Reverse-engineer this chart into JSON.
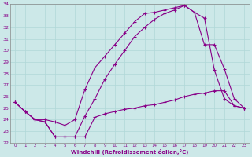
{
  "xlabel": "Windchill (Refroidissement éolien,°C)",
  "bg_color": "#cce8e8",
  "line_color": "#880088",
  "xlim": [
    -0.5,
    23.5
  ],
  "ylim": [
    22,
    34
  ],
  "xticks": [
    0,
    1,
    2,
    3,
    4,
    5,
    6,
    7,
    8,
    9,
    10,
    11,
    12,
    13,
    14,
    15,
    16,
    17,
    18,
    19,
    20,
    21,
    22,
    23
  ],
  "yticks": [
    22,
    23,
    24,
    25,
    26,
    27,
    28,
    29,
    30,
    31,
    32,
    33,
    34
  ],
  "series1_x": [
    0,
    1,
    2,
    3,
    4,
    5,
    6,
    7,
    8,
    9,
    10,
    11,
    12,
    13,
    14,
    15,
    16,
    17,
    18,
    19,
    20,
    21,
    22,
    23
  ],
  "series1_y": [
    25.5,
    24.7,
    24.0,
    24.0,
    23.8,
    23.5,
    24.0,
    26.6,
    28.5,
    29.5,
    30.5,
    31.5,
    32.5,
    33.2,
    33.3,
    33.5,
    33.7,
    33.9,
    33.3,
    32.8,
    28.3,
    25.8,
    25.2,
    25.0
  ],
  "series2_x": [
    0,
    1,
    2,
    3,
    4,
    5,
    6,
    7,
    8,
    9,
    10,
    11,
    12,
    13,
    14,
    15,
    16,
    17,
    18,
    19,
    20,
    21,
    22,
    23
  ],
  "series2_y": [
    25.5,
    24.7,
    24.0,
    23.8,
    22.5,
    22.5,
    22.5,
    22.5,
    24.2,
    24.5,
    24.7,
    24.9,
    25.0,
    25.2,
    25.3,
    25.5,
    25.7,
    26.0,
    26.2,
    26.3,
    26.5,
    26.5,
    25.2,
    25.0
  ],
  "series3_x": [
    0,
    1,
    2,
    3,
    4,
    5,
    6,
    7,
    8,
    9,
    10,
    11,
    12,
    13,
    14,
    15,
    16,
    17,
    18,
    19,
    20,
    21,
    22,
    23
  ],
  "series3_y": [
    25.5,
    24.7,
    24.0,
    23.8,
    22.5,
    22.5,
    22.5,
    24.3,
    25.8,
    27.5,
    28.8,
    30.0,
    31.2,
    32.0,
    32.7,
    33.2,
    33.5,
    33.9,
    33.3,
    30.5,
    30.5,
    28.4,
    25.8,
    25.0
  ]
}
